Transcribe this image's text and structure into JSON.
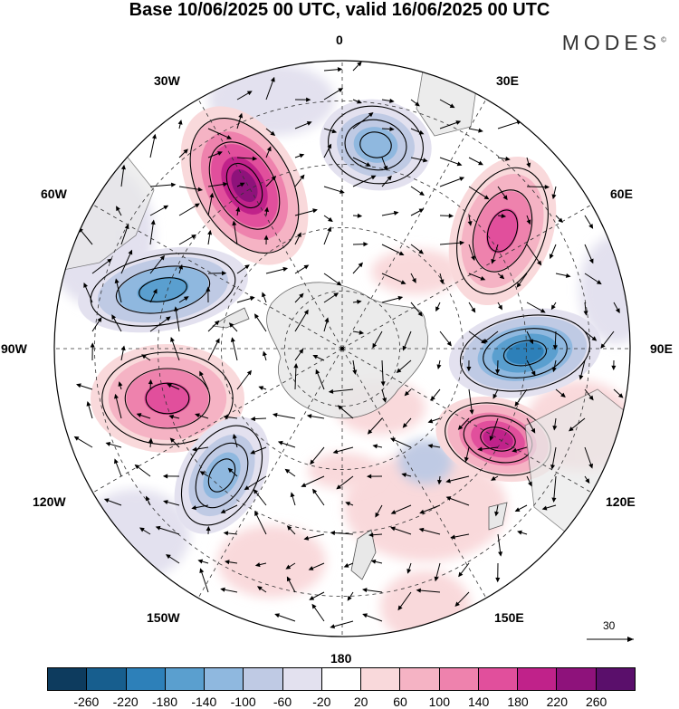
{
  "title": "Base 10/06/2025 00 UTC, valid 16/06/2025 00 UTC",
  "brand": "MODES",
  "brand_mark": "©",
  "longitude_labels": {
    "n0": "0",
    "n30e": "30E",
    "n60e": "60E",
    "n90e": "90E",
    "n120e": "120E",
    "n150e": "150E",
    "n180": "180",
    "n150w": "150W",
    "n120w": "120W",
    "n90w": "90W",
    "n60w": "60W",
    "n30w": "30W"
  },
  "reference_vector": {
    "label": "30"
  },
  "colorbar": {
    "ticks": [
      "-260",
      "-220",
      "-180",
      "-140",
      "-100",
      "-60",
      "-20",
      "20",
      "60",
      "100",
      "140",
      "180",
      "220",
      "260"
    ],
    "colors": [
      "#0d3b5e",
      "#175e8e",
      "#2d80b9",
      "#5a9fcf",
      "#8fb8df",
      "#bfcae4",
      "#e3e1ef",
      "#ffffff",
      "#f9d9db",
      "#f5b3c4",
      "#ee82ad",
      "#e14f9c",
      "#c0228a",
      "#8e127b",
      "#5a0f6b"
    ]
  },
  "map": {
    "projection": "south-polar-stereographic",
    "colors": {
      "land": "#e8e8e8",
      "coast": "#555555",
      "grid": "#333333"
    },
    "anomalies": [
      {
        "name": "high-30w",
        "value": 240
      },
      {
        "name": "low-0",
        "value": -150
      },
      {
        "name": "high-60e",
        "value": 180
      },
      {
        "name": "low-75w",
        "value": -160
      },
      {
        "name": "low-90e",
        "value": -200
      },
      {
        "name": "high-105w",
        "value": 170
      },
      {
        "name": "high-120e",
        "value": 200
      },
      {
        "name": "low-125w",
        "value": -130
      }
    ]
  }
}
